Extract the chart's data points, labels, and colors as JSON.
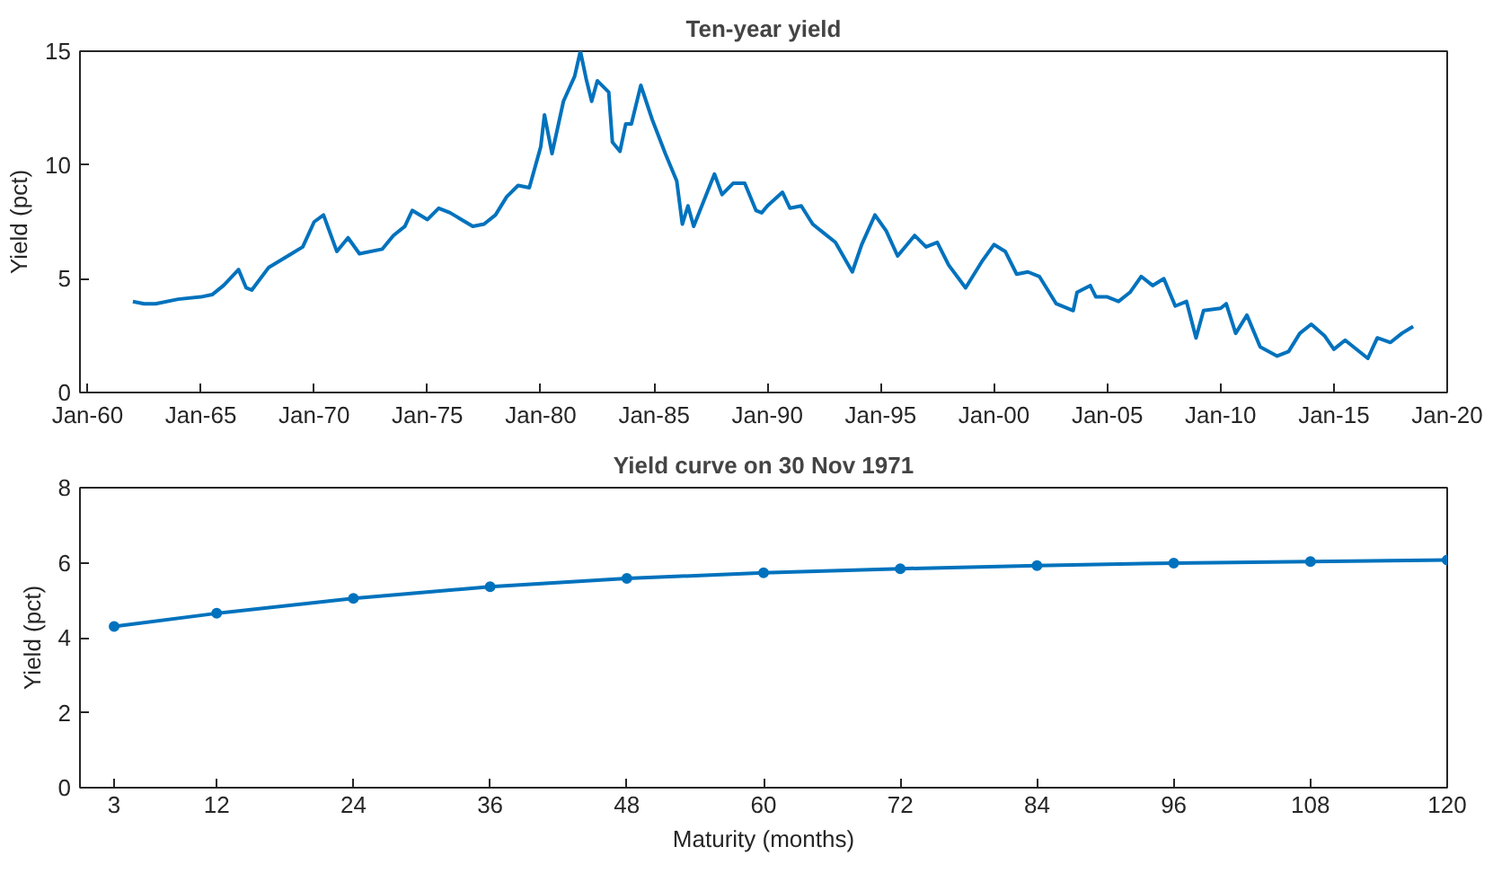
{
  "chart_data": [
    {
      "type": "line",
      "title": "Ten-year yield",
      "ylabel": "Yield (pct)",
      "color": "#0072bd",
      "grid": false,
      "line_style": "solid",
      "x": [
        "1962-01",
        "1962-07",
        "1963-01",
        "1964-01",
        "1965-01",
        "1965-07",
        "1966-01",
        "1966-09",
        "1967-01",
        "1967-04",
        "1968-01",
        "1969-01",
        "1969-07",
        "1970-01",
        "1970-06",
        "1971-01",
        "1971-07",
        "1972-01",
        "1973-01",
        "1973-07",
        "1974-01",
        "1974-05",
        "1975-01",
        "1975-07",
        "1976-01",
        "1977-01",
        "1977-07",
        "1978-01",
        "1978-07",
        "1979-01",
        "1979-07",
        "1980-01",
        "1980-03",
        "1980-07",
        "1981-01",
        "1981-07",
        "1981-10",
        "1982-01",
        "1982-04",
        "1982-07",
        "1983-01",
        "1983-03",
        "1983-07",
        "1983-10",
        "1984-01",
        "1984-06",
        "1984-12",
        "1985-07",
        "1986-01",
        "1986-04",
        "1986-07",
        "1986-10",
        "1987-09",
        "1988-01",
        "1988-07",
        "1989-01",
        "1989-07",
        "1989-10",
        "1990-01",
        "1990-09",
        "1991-01",
        "1991-07",
        "1992-01",
        "1992-07",
        "1993-01",
        "1993-10",
        "1994-03",
        "1994-10",
        "1995-04",
        "1995-10",
        "1996-07",
        "1997-01",
        "1997-07",
        "1998-01",
        "1998-10",
        "1999-07",
        "2000-01",
        "2000-07",
        "2001-01",
        "2001-07",
        "2002-01",
        "2002-10",
        "2003-07",
        "2003-09",
        "2004-04",
        "2004-07",
        "2005-01",
        "2005-07",
        "2006-01",
        "2006-07",
        "2007-01",
        "2007-07",
        "2008-01",
        "2008-07",
        "2008-12",
        "2009-04",
        "2010-01",
        "2010-04",
        "2010-09",
        "2011-03",
        "2011-10",
        "2012-07",
        "2013-01",
        "2013-07",
        "2014-01",
        "2014-08",
        "2015-01",
        "2015-07",
        "2016-07",
        "2016-12",
        "2017-07",
        "2018-01",
        "2018-07"
      ],
      "values": [
        4.0,
        3.9,
        3.9,
        4.1,
        4.2,
        4.3,
        4.7,
        5.4,
        4.6,
        4.5,
        5.5,
        6.1,
        6.4,
        7.5,
        7.8,
        6.2,
        6.8,
        6.1,
        6.3,
        6.9,
        7.3,
        8.0,
        7.6,
        8.1,
        7.9,
        7.3,
        7.4,
        7.8,
        8.6,
        9.1,
        9.0,
        10.8,
        12.2,
        10.5,
        12.8,
        13.9,
        15.0,
        13.8,
        12.8,
        13.7,
        13.2,
        11.0,
        10.6,
        11.8,
        11.8,
        13.5,
        12.0,
        10.5,
        9.3,
        7.4,
        8.2,
        7.3,
        9.6,
        8.7,
        9.2,
        9.2,
        8.0,
        7.9,
        8.2,
        8.8,
        8.1,
        8.2,
        7.4,
        7.0,
        6.6,
        5.3,
        6.5,
        7.8,
        7.1,
        6.0,
        6.9,
        6.4,
        6.6,
        5.6,
        4.6,
        5.8,
        6.5,
        6.2,
        5.2,
        5.3,
        5.1,
        3.9,
        3.6,
        4.4,
        4.7,
        4.2,
        4.2,
        4.0,
        4.4,
        5.1,
        4.7,
        5.0,
        3.8,
        4.0,
        2.4,
        3.6,
        3.7,
        3.9,
        2.6,
        3.4,
        2.0,
        1.6,
        1.8,
        2.6,
        3.0,
        2.5,
        1.9,
        2.3,
        1.5,
        2.4,
        2.2,
        2.6,
        2.9
      ],
      "xlim": [
        "1959-09",
        "2020-01"
      ],
      "xticks": [
        {
          "value": "1960-01",
          "label": "Jan-60"
        },
        {
          "value": "1965-01",
          "label": "Jan-65"
        },
        {
          "value": "1970-01",
          "label": "Jan-70"
        },
        {
          "value": "1975-01",
          "label": "Jan-75"
        },
        {
          "value": "1980-01",
          "label": "Jan-80"
        },
        {
          "value": "1985-01",
          "label": "Jan-85"
        },
        {
          "value": "1990-01",
          "label": "Jan-90"
        },
        {
          "value": "1995-01",
          "label": "Jan-95"
        },
        {
          "value": "2000-01",
          "label": "Jan-00"
        },
        {
          "value": "2005-01",
          "label": "Jan-05"
        },
        {
          "value": "2010-01",
          "label": "Jan-10"
        },
        {
          "value": "2015-01",
          "label": "Jan-15"
        },
        {
          "value": "2020-01",
          "label": "Jan-20"
        }
      ],
      "ylim": [
        0,
        15
      ],
      "yticks": [
        0,
        5,
        10,
        15
      ]
    },
    {
      "type": "line",
      "title": "Yield curve on 30 Nov 1971",
      "xlabel": "Maturity (months)",
      "ylabel": "Yield (pct)",
      "color": "#0072bd",
      "grid": false,
      "marker": "circle",
      "line_style": "solid",
      "x": [
        3,
        12,
        24,
        36,
        48,
        60,
        72,
        84,
        96,
        108,
        120
      ],
      "values": [
        4.3,
        4.65,
        5.05,
        5.36,
        5.58,
        5.73,
        5.84,
        5.92,
        5.99,
        6.03,
        6.07
      ],
      "xlim": [
        0,
        120
      ],
      "xticks": [
        3,
        12,
        24,
        36,
        48,
        60,
        72,
        84,
        96,
        108,
        120
      ],
      "ylim": [
        0,
        8
      ],
      "yticks": [
        0,
        2,
        4,
        6,
        8
      ]
    }
  ]
}
